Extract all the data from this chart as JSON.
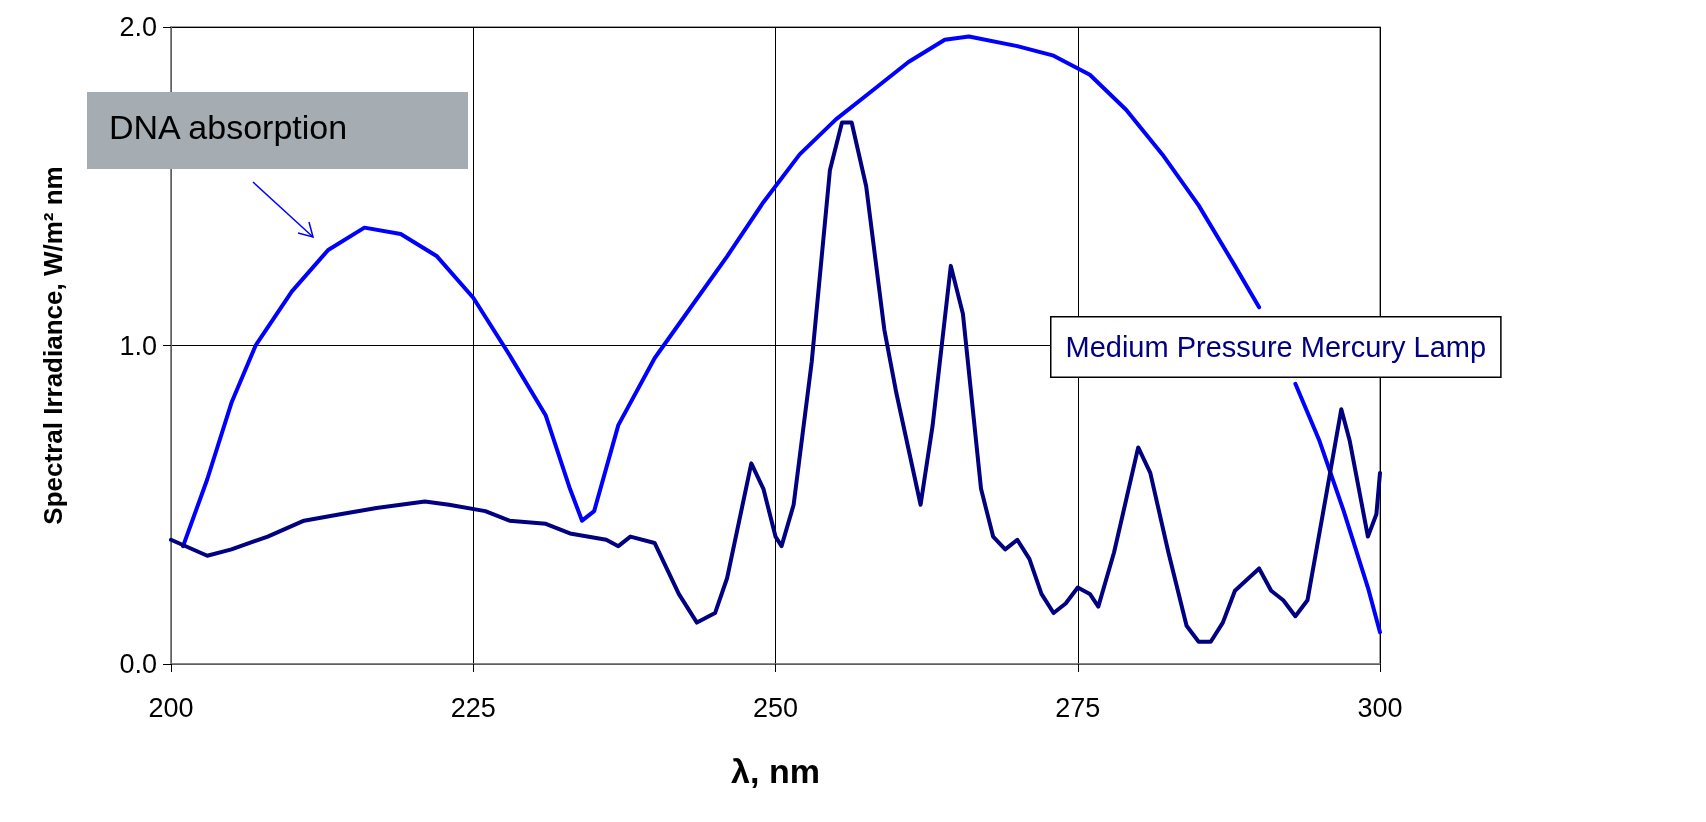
{
  "chart_data": {
    "type": "line",
    "xlabel": "λ, nm",
    "ylabel": "Spectral Irradiance, W/m² nm",
    "xlim": [
      200,
      300
    ],
    "xticks": [
      200,
      225,
      250,
      275,
      300
    ],
    "ylim": [
      0,
      2
    ],
    "yticks": [
      {
        "value": 0,
        "label": "0.0"
      },
      {
        "value": 1,
        "label": "1.0"
      },
      {
        "value": 2,
        "label": "2.0"
      }
    ],
    "grid": true,
    "legend": false,
    "marker": "none",
    "line_style": "solid",
    "series": [
      {
        "name": "DNA absorption",
        "color": "#0000ff",
        "x": [
          201,
          203,
          205,
          207,
          210,
          213,
          216,
          219,
          222,
          225,
          228,
          231,
          233,
          234,
          235,
          237,
          240,
          243,
          246,
          249,
          252,
          255,
          258,
          261,
          264,
          266,
          270,
          273,
          276,
          279,
          282,
          285,
          288,
          290,
          291,
          292,
          293,
          295,
          297,
          299,
          300
        ],
        "values": [
          0.37,
          0.58,
          0.82,
          1.0,
          1.17,
          1.3,
          1.37,
          1.35,
          1.28,
          1.15,
          0.97,
          0.78,
          0.55,
          0.45,
          0.48,
          0.75,
          0.96,
          1.12,
          1.28,
          1.45,
          1.6,
          1.71,
          1.8,
          1.89,
          1.96,
          1.97,
          1.94,
          1.91,
          1.85,
          1.74,
          1.6,
          1.44,
          1.25,
          1.12,
          null,
          null,
          0.88,
          0.7,
          0.48,
          0.24,
          0.1
        ]
      },
      {
        "name": "Medium Pressure Mercury Lamp",
        "color": "#000080",
        "x": [
          200,
          203,
          205,
          208,
          211,
          214,
          217,
          221,
          223,
          226,
          228,
          231,
          233,
          236,
          237,
          238,
          240,
          241,
          242,
          243.5,
          245,
          246,
          248,
          249,
          250,
          250.5,
          251.5,
          253,
          254.5,
          255.5,
          256.3,
          257.5,
          259,
          260,
          262,
          263,
          264.5,
          265.5,
          267,
          268,
          269,
          270,
          271,
          272,
          273,
          274,
          275,
          276,
          276.7,
          278,
          280,
          281,
          282.5,
          284,
          285,
          286,
          287,
          288,
          290,
          291,
          292,
          293,
          294,
          295.5,
          296.8,
          297.5,
          299,
          299.7,
          300
        ],
        "values": [
          0.39,
          0.34,
          0.36,
          0.4,
          0.45,
          0.47,
          0.49,
          0.51,
          0.5,
          0.48,
          0.45,
          0.44,
          0.41,
          0.39,
          0.37,
          0.4,
          0.38,
          0.3,
          0.22,
          0.13,
          0.16,
          0.27,
          0.63,
          0.55,
          0.4,
          0.37,
          0.5,
          0.95,
          1.55,
          1.7,
          1.7,
          1.5,
          1.05,
          0.85,
          0.5,
          0.75,
          1.25,
          1.1,
          0.55,
          0.4,
          0.36,
          0.39,
          0.33,
          0.22,
          0.16,
          0.19,
          0.24,
          0.22,
          0.18,
          0.35,
          0.68,
          0.6,
          0.35,
          0.12,
          0.07,
          0.07,
          0.13,
          0.23,
          0.3,
          0.23,
          0.2,
          0.15,
          0.2,
          0.52,
          0.8,
          0.7,
          0.4,
          0.47,
          0.6
        ]
      }
    ]
  }
}
